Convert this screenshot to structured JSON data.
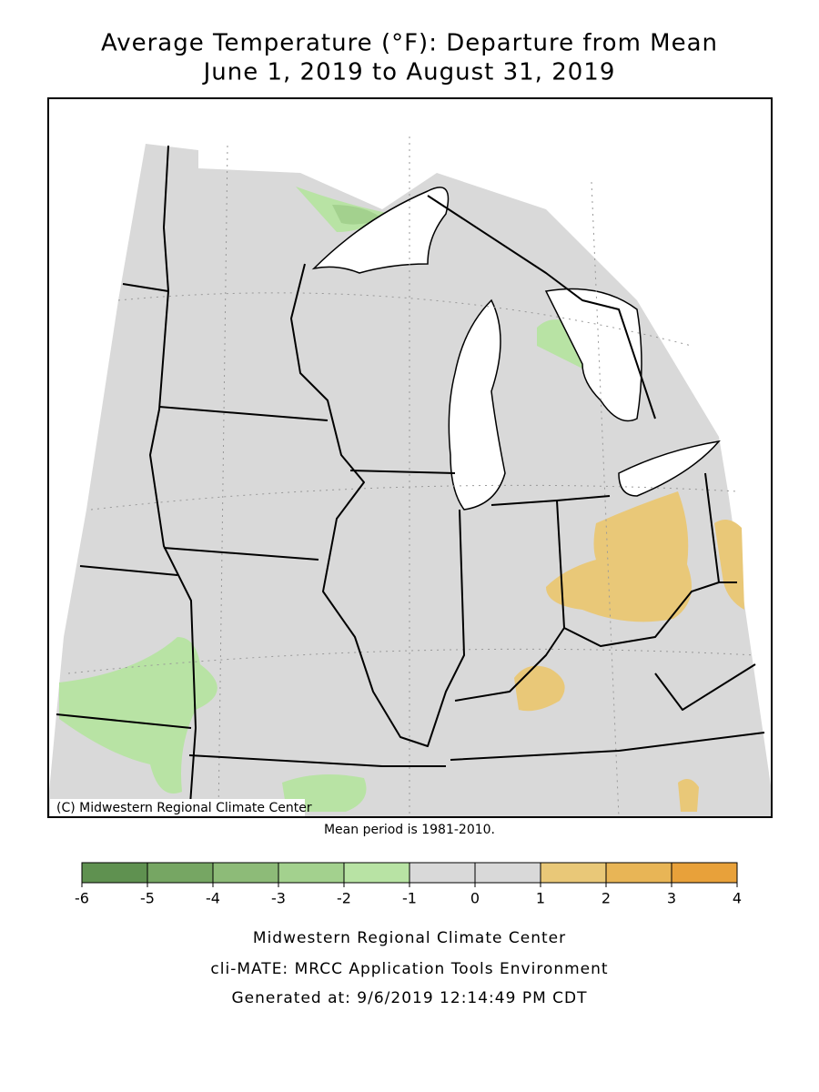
{
  "header": {
    "title_line1": "Average Temperature (°F): Departure from Mean",
    "title_line2": "June 1, 2019 to August 31, 2019"
  },
  "map": {
    "copyright": "(C) Midwestern Regional Climate Center",
    "note": "Mean period is 1981-2010."
  },
  "legend": {
    "ticks": [
      -6,
      -5,
      -4,
      -3,
      -2,
      -1,
      0,
      1,
      2,
      3,
      4
    ],
    "colors": [
      "#5f9150",
      "#76a663",
      "#8dbb78",
      "#a3d18e",
      "#b8e3a4",
      "#d9d9d9",
      "#d9d9d9",
      "#e9c878",
      "#e8b556",
      "#e8a13a"
    ]
  },
  "footer": {
    "line1": "Midwestern Regional Climate Center",
    "line2": "cli-MATE: MRCC Application Tools Environment",
    "line3": "Generated at: 9/6/2019 12:14:49 PM CDT"
  }
}
